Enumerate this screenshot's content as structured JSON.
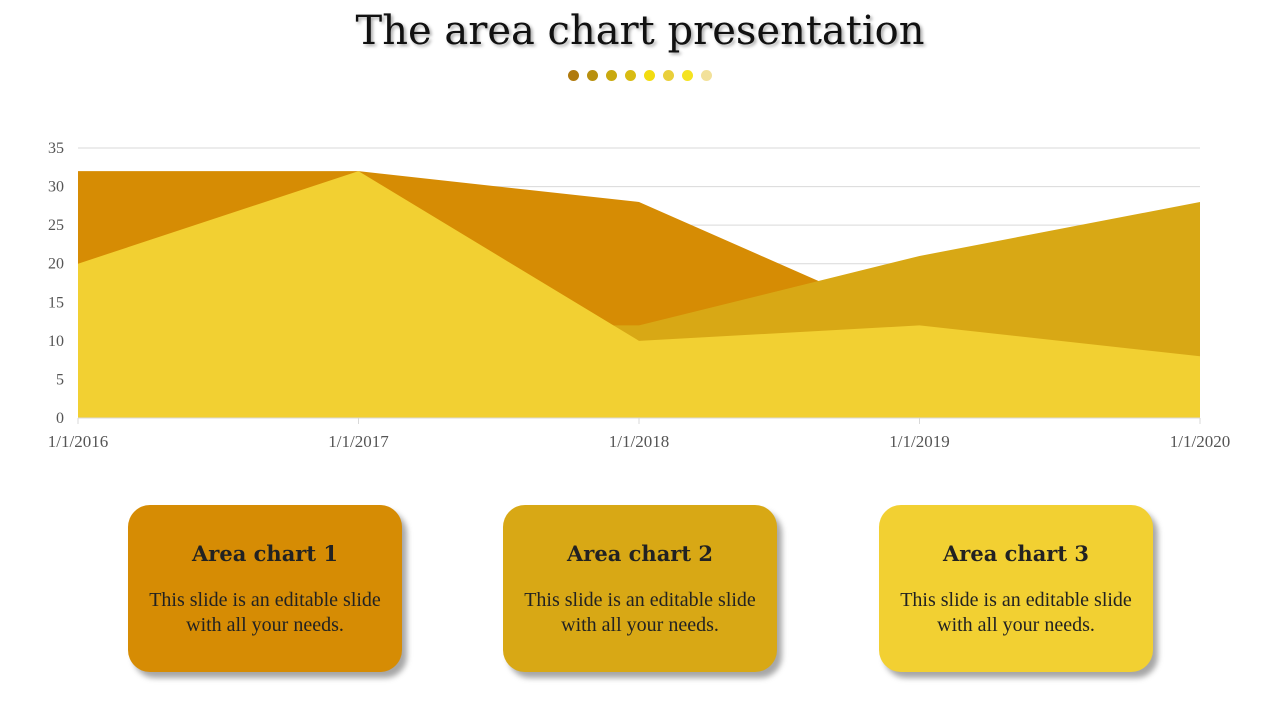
{
  "slide": {
    "title": "The area chart presentation"
  },
  "decor": {
    "dot_colors": [
      "#b07a0e",
      "#b8900f",
      "#c9a90f",
      "#d8bb12",
      "#f2dc10",
      "#e9cf3a",
      "#f5e320",
      "#f2e19a"
    ]
  },
  "chart_data": {
    "type": "area",
    "x": [
      "1/1/2016",
      "1/1/2017",
      "1/1/2018",
      "1/1/2019",
      "1/1/2020"
    ],
    "y_ticks": [
      0,
      5,
      10,
      15,
      20,
      25,
      30,
      35
    ],
    "ylim": [
      0,
      35
    ],
    "grid": true,
    "legend": "none",
    "series": [
      {
        "color": "#d68c04",
        "values": [
          32,
          32,
          28,
          12,
          15
        ]
      },
      {
        "color": "#d8a815",
        "values": [
          12,
          12,
          12,
          21,
          28
        ]
      },
      {
        "color": "#f2d032",
        "values": [
          20,
          32,
          10,
          12,
          8
        ]
      }
    ]
  },
  "cards": [
    {
      "title": "Area chart 1",
      "text": "This slide is an editable slide with all your needs.",
      "color": "#d68c04"
    },
    {
      "title": "Area chart 2",
      "text": "This slide is an editable slide with all your needs.",
      "color": "#d8a815"
    },
    {
      "title": "Area chart 3",
      "text": "This slide is an editable slide with all your needs.",
      "color": "#f2d032"
    }
  ]
}
